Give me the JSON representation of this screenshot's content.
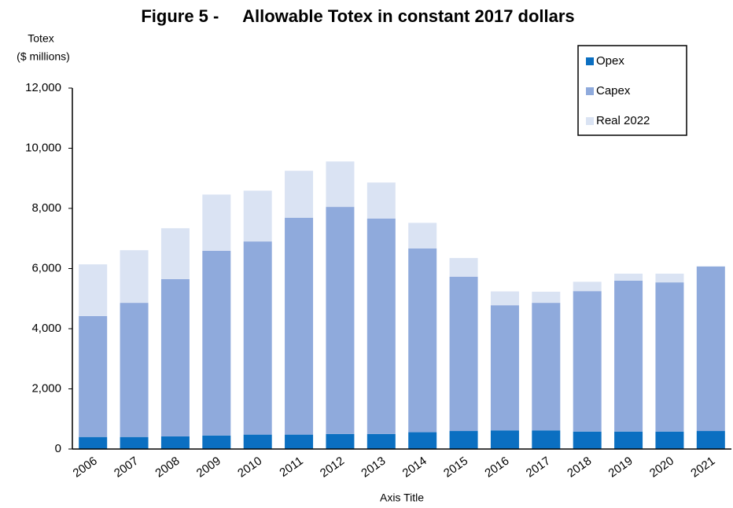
{
  "chart_data": {
    "type": "stacked_bar",
    "title": "Figure 5 -     Allowable Totex in constant 2017 dollars",
    "y_label": [
      "Totex",
      "($ millions)"
    ],
    "x_label": "Axis Title",
    "categories": [
      "2006",
      "2007",
      "2008",
      "2009",
      "2010",
      "2011",
      "2012",
      "2013",
      "2014",
      "2015",
      "2016",
      "2017",
      "2018",
      "2019",
      "2020",
      "2021"
    ],
    "series": [
      {
        "name": "Opex",
        "color": "#0b6fc1",
        "values": [
          400,
          400,
          420,
          450,
          480,
          480,
          500,
          500,
          560,
          600,
          620,
          620,
          580,
          580,
          580,
          600
        ]
      },
      {
        "name": "Capex",
        "color": "#8faadc",
        "values": [
          4020,
          4460,
          5230,
          6140,
          6420,
          7210,
          7550,
          7160,
          6110,
          5130,
          4160,
          4240,
          4670,
          5020,
          4960,
          5470
        ]
      },
      {
        "name": "Real 2022",
        "color": "#dae3f3",
        "values": [
          1720,
          1750,
          1690,
          1870,
          1690,
          1560,
          1510,
          1200,
          850,
          620,
          460,
          370,
          310,
          230,
          290,
          0
        ]
      }
    ],
    "ylim": [
      0,
      12000
    ],
    "yticks": [
      0,
      {
        "value": 2000,
        "label": "2,000"
      },
      {
        "value": 4000,
        "label": "4,000"
      },
      {
        "value": 6000,
        "label": "6,000"
      },
      {
        "value": 8000,
        "label": "8,000"
      },
      {
        "value": 10000,
        "label": "10,000"
      },
      {
        "value": 12000,
        "label": "12,000"
      }
    ],
    "legend": "top-right"
  }
}
